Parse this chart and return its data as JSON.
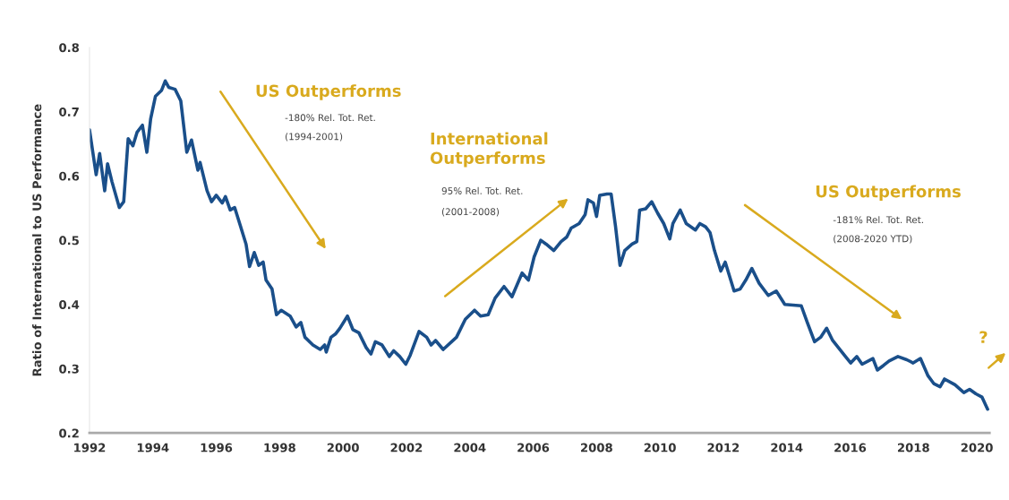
{
  "chart_data": {
    "type": "line",
    "ylabel": "Ratio of International to US Performance",
    "xlim": [
      1992,
      2020.4
    ],
    "xticks": [
      1992,
      1994,
      1996,
      1998,
      2000,
      2002,
      2004,
      2006,
      2008,
      2010,
      2012,
      2014,
      2016,
      2018,
      2020
    ],
    "ylim": [
      0.2,
      0.8
    ],
    "yticks": [
      0.2,
      0.3,
      0.4,
      0.5,
      0.6,
      0.7,
      0.8
    ],
    "grid": false,
    "line_style": "solid",
    "annotations": [
      "US Outperforms",
      "-180% Rel. Tot. Ret.",
      "(1994-2001)",
      "International\nOutperforms",
      "95% Rel. Tot. Ret.",
      "(2001-2008)",
      "US Outperforms",
      "-181% Rel. Tot. Ret.",
      "(2008-2020 YTD)",
      "?"
    ],
    "series": [
      {
        "color": "#1a4f8a",
        "x": [
          1992.0,
          1992.21,
          1992.32,
          1992.48,
          1992.57,
          1992.71,
          1992.94,
          1993.08,
          1993.22,
          1993.37,
          1993.5,
          1993.67,
          1993.81,
          1993.93,
          1994.08,
          1994.27,
          1994.39,
          1994.5,
          1994.7,
          1994.88,
          1995.07,
          1995.22,
          1995.42,
          1995.49,
          1995.71,
          1995.85,
          1996.0,
          1996.19,
          1996.29,
          1996.44,
          1996.58,
          1996.77,
          1996.94,
          1997.05,
          1997.2,
          1997.34,
          1997.48,
          1997.57,
          1997.76,
          1997.9,
          1998.05,
          1998.33,
          1998.52,
          1998.67,
          1998.8,
          1999.05,
          1999.28,
          1999.42,
          1999.47,
          1999.62,
          1999.76,
          1999.9,
          2000.14,
          2000.31,
          2000.5,
          2000.73,
          2000.88,
          2001.02,
          2001.23,
          2001.46,
          2001.6,
          2001.79,
          2001.98,
          2002.12,
          2002.4,
          2002.64,
          2002.78,
          2002.92,
          2003.16,
          2003.58,
          2003.86,
          2004.15,
          2004.34,
          2004.58,
          2004.8,
          2005.08,
          2005.33,
          2005.65,
          2005.85,
          2006.03,
          2006.24,
          2006.41,
          2006.65,
          2006.88,
          2007.06,
          2007.2,
          2007.45,
          2007.64,
          2007.73,
          2007.9,
          2008.0,
          2008.1,
          2008.33,
          2008.46,
          2008.6,
          2008.74,
          2008.89,
          2009.12,
          2009.27,
          2009.36,
          2009.55,
          2009.74,
          2009.93,
          2010.12,
          2010.31,
          2010.41,
          2010.64,
          2010.83,
          2011.12,
          2011.26,
          2011.44,
          2011.58,
          2011.72,
          2011.92,
          2012.06,
          2012.34,
          2012.53,
          2012.71,
          2012.9,
          2013.13,
          2013.42,
          2013.67,
          2013.94,
          2014.46,
          2014.65,
          2014.88,
          2015.07,
          2015.26,
          2015.45,
          2015.82,
          2016.02,
          2016.21,
          2016.38,
          2016.72,
          2016.86,
          2017.05,
          2017.23,
          2017.51,
          2017.79,
          2017.99,
          2018.22,
          2018.46,
          2018.64,
          2018.84,
          2018.98,
          2019.31,
          2019.59,
          2019.77,
          2019.97,
          2020.16,
          2020.34
        ],
        "values": [
          0.672,
          0.602,
          0.635,
          0.577,
          0.619,
          0.591,
          0.551,
          0.56,
          0.658,
          0.647,
          0.668,
          0.679,
          0.637,
          0.689,
          0.724,
          0.733,
          0.748,
          0.738,
          0.735,
          0.717,
          0.637,
          0.656,
          0.609,
          0.621,
          0.577,
          0.56,
          0.57,
          0.558,
          0.568,
          0.547,
          0.551,
          0.521,
          0.494,
          0.459,
          0.481,
          0.461,
          0.466,
          0.438,
          0.424,
          0.384,
          0.391,
          0.382,
          0.365,
          0.372,
          0.349,
          0.337,
          0.33,
          0.337,
          0.326,
          0.349,
          0.354,
          0.363,
          0.382,
          0.361,
          0.356,
          0.333,
          0.323,
          0.342,
          0.337,
          0.319,
          0.328,
          0.319,
          0.307,
          0.321,
          0.358,
          0.349,
          0.337,
          0.344,
          0.33,
          0.349,
          0.377,
          0.391,
          0.382,
          0.384,
          0.41,
          0.428,
          0.412,
          0.449,
          0.438,
          0.474,
          0.5,
          0.494,
          0.484,
          0.498,
          0.505,
          0.519,
          0.526,
          0.54,
          0.563,
          0.558,
          0.537,
          0.57,
          0.572,
          0.572,
          0.521,
          0.461,
          0.484,
          0.494,
          0.498,
          0.547,
          0.549,
          0.56,
          0.542,
          0.526,
          0.502,
          0.526,
          0.547,
          0.526,
          0.516,
          0.526,
          0.521,
          0.512,
          0.484,
          0.452,
          0.466,
          0.421,
          0.424,
          0.438,
          0.456,
          0.433,
          0.414,
          0.421,
          0.4,
          0.398,
          0.372,
          0.342,
          0.349,
          0.363,
          0.344,
          0.321,
          0.309,
          0.319,
          0.307,
          0.316,
          0.298,
          0.305,
          0.312,
          0.319,
          0.314,
          0.309,
          0.316,
          0.289,
          0.277,
          0.272,
          0.284,
          0.275,
          0.263,
          0.268,
          0.261,
          0.256,
          0.237
        ]
      }
    ]
  }
}
